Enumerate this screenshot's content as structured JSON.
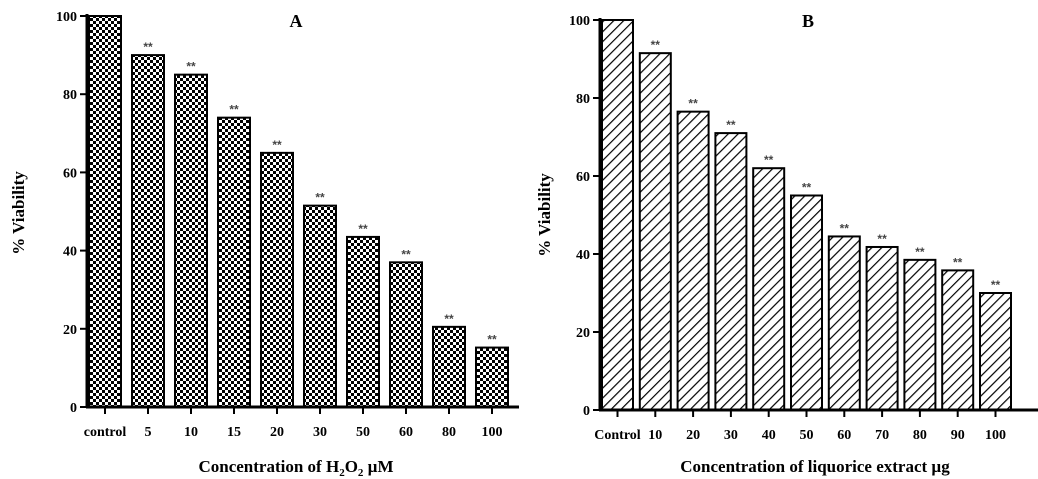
{
  "chart_data": [
    {
      "type": "bar",
      "panel_label": "A",
      "ylabel": "% Viability",
      "xlabel_parts": [
        "Concentration of H",
        "2",
        "O",
        "2",
        " µM"
      ],
      "categories": [
        "control",
        "5",
        "10",
        "15",
        "20",
        "30",
        "50",
        "60",
        "80",
        "100"
      ],
      "values": [
        100,
        90,
        85,
        74,
        65,
        51.5,
        43.5,
        37,
        20.5,
        15.2
      ],
      "significance": [
        "",
        "**",
        "**",
        "**",
        "**",
        "**",
        "**",
        "**",
        "**",
        "**"
      ],
      "ylim": [
        0,
        100
      ],
      "yticks": [
        "0",
        "20",
        "40",
        "60",
        "80",
        "100"
      ],
      "pattern": "checker",
      "grid": false
    },
    {
      "type": "bar",
      "panel_label": "B",
      "ylabel": "% Viability",
      "xlabel": "Concentration of liquorice extract µg",
      "categories": [
        "Control",
        "10",
        "20",
        "30",
        "40",
        "50",
        "60",
        "70",
        "80",
        "90",
        "100"
      ],
      "values": [
        100,
        91.5,
        76.5,
        71,
        62,
        55,
        44.5,
        41.8,
        38.5,
        35.8,
        30
      ],
      "significance": [
        "",
        "**",
        "**",
        "**",
        "**",
        "**",
        "**",
        "**",
        "**",
        "**",
        "**"
      ],
      "ylim": [
        0,
        100
      ],
      "yticks": [
        "0",
        "20",
        "40",
        "60",
        "80",
        "100"
      ],
      "pattern": "diagonal",
      "grid": false
    }
  ]
}
